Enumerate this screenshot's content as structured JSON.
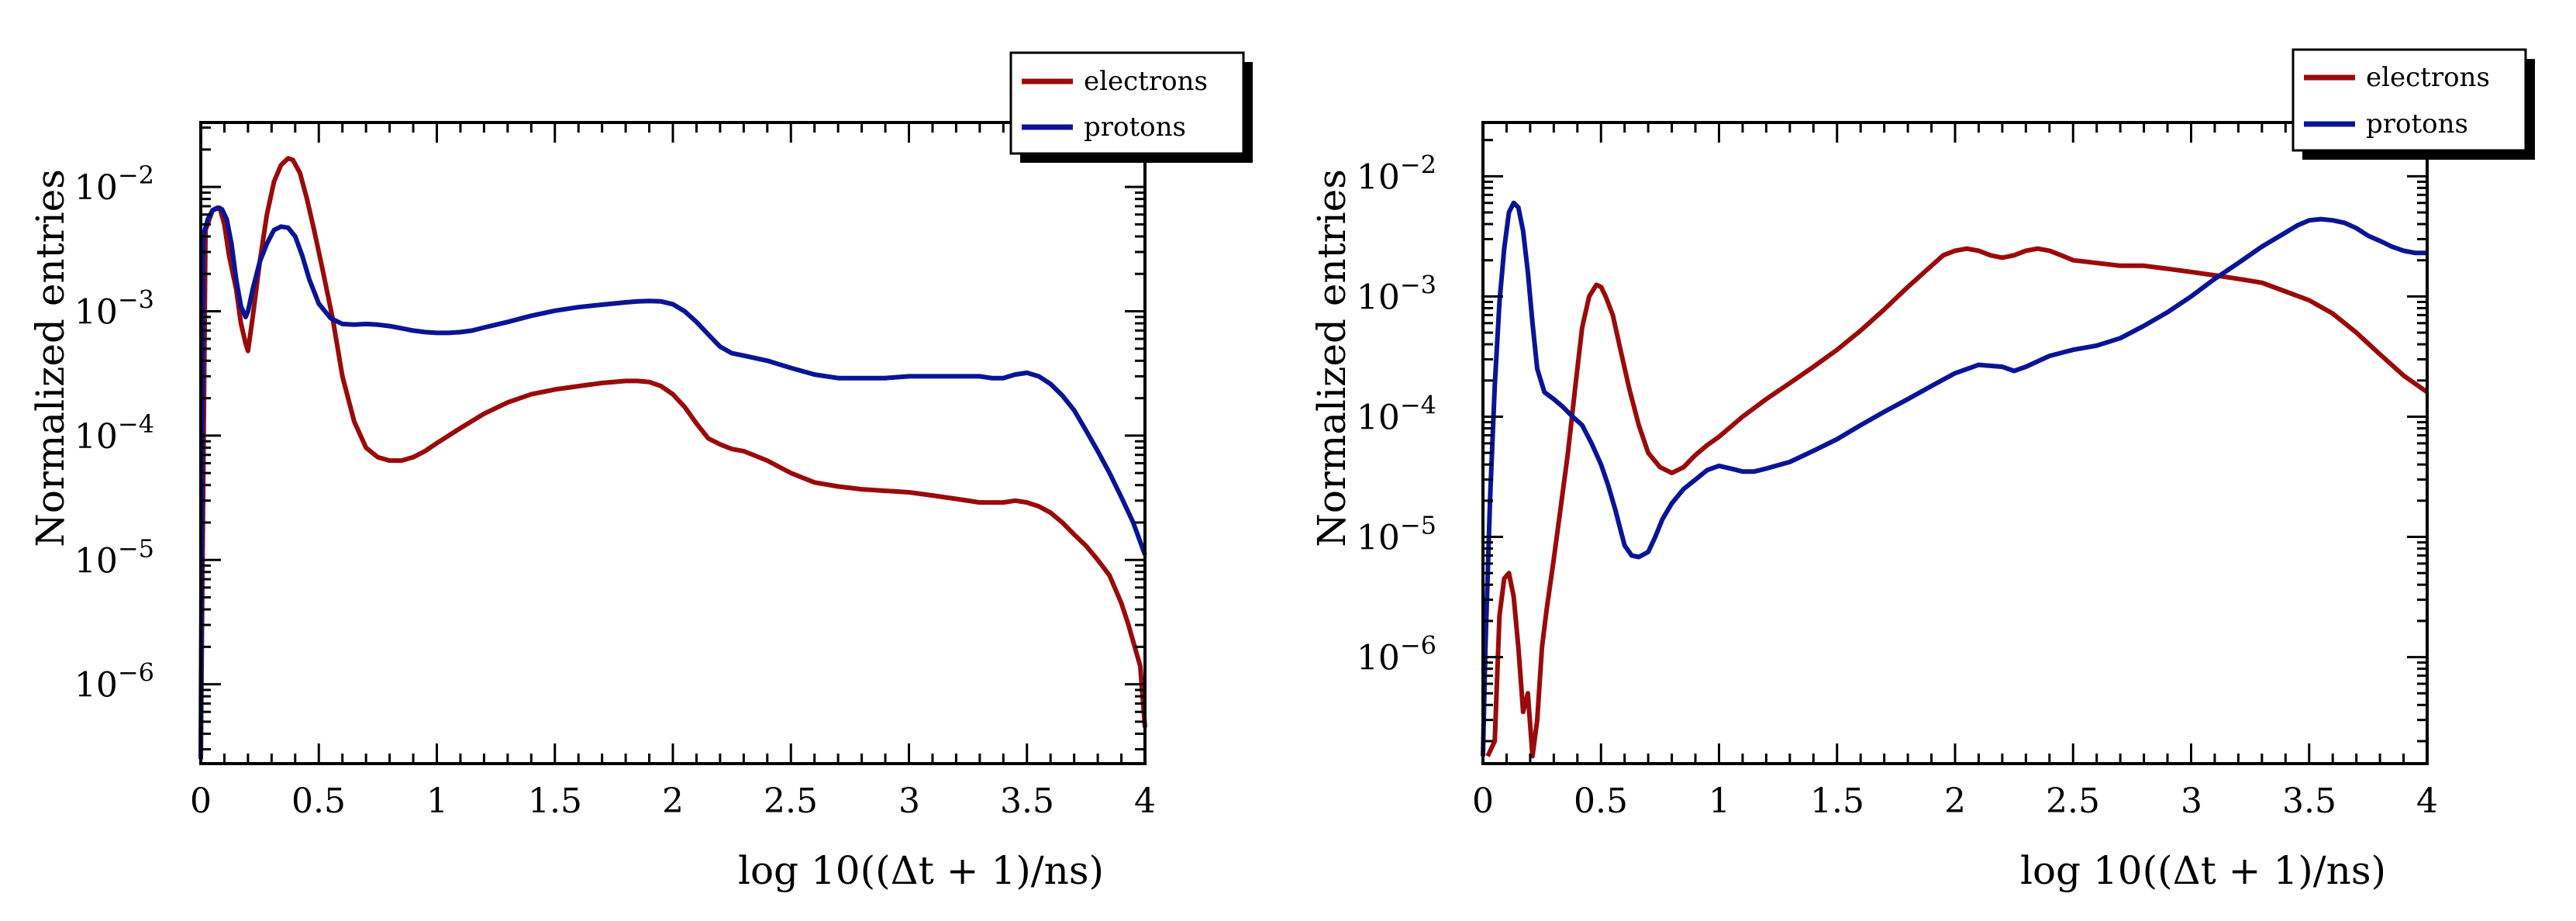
{
  "chart_data": [
    {
      "type": "line",
      "panel": "left",
      "xlabel": "log 10((Δt + 1)/ns)",
      "ylabel": "Normalized entries",
      "yscale": "log",
      "xlim": [
        0,
        4
      ],
      "ylim": [
        2.3e-07,
        0.033
      ],
      "xticks": [
        0,
        0.5,
        1,
        1.5,
        2,
        2.5,
        3,
        3.5,
        4
      ],
      "xtick_labels": [
        "0",
        "0.5",
        "1",
        "1.5",
        "2",
        "2.5",
        "3",
        "3.5",
        "4"
      ],
      "ytick_exponents": [
        -2,
        -3,
        -4,
        -5,
        -6
      ],
      "legend_position": "top-right",
      "series": [
        {
          "name": "electrons",
          "color": "#9b0a0a",
          "x": [
            0,
            0.02,
            0.05,
            0.08,
            0.1,
            0.12,
            0.15,
            0.17,
            0.19,
            0.2,
            0.22,
            0.25,
            0.28,
            0.31,
            0.34,
            0.37,
            0.39,
            0.42,
            0.45,
            0.48,
            0.52,
            0.56,
            0.6,
            0.65,
            0.7,
            0.75,
            0.8,
            0.85,
            0.9,
            0.95,
            1.0,
            1.1,
            1.2,
            1.3,
            1.4,
            1.5,
            1.6,
            1.7,
            1.8,
            1.85,
            1.9,
            1.95,
            2.0,
            2.05,
            2.1,
            2.15,
            2.2,
            2.25,
            2.3,
            2.4,
            2.5,
            2.6,
            2.7,
            2.8,
            2.9,
            3.0,
            3.1,
            3.2,
            3.3,
            3.4,
            3.45,
            3.5,
            3.55,
            3.6,
            3.65,
            3.7,
            3.75,
            3.8,
            3.85,
            3.9,
            3.93,
            3.96,
            3.98,
            4.0
          ],
          "y": [
            2.5e-07,
            0.0045,
            0.0065,
            0.0068,
            0.005,
            0.0028,
            0.0015,
            0.0008,
            0.00055,
            0.00048,
            0.0009,
            0.0025,
            0.006,
            0.011,
            0.015,
            0.017,
            0.0165,
            0.013,
            0.008,
            0.0045,
            0.002,
            0.00085,
            0.0003,
            0.00013,
            8e-05,
            6.7e-05,
            6.3e-05,
            6.3e-05,
            6.7e-05,
            7.5e-05,
            8.7e-05,
            0.000115,
            0.00015,
            0.000185,
            0.000215,
            0.000235,
            0.00025,
            0.000265,
            0.000275,
            0.000275,
            0.00027,
            0.00025,
            0.000215,
            0.00017,
            0.000125,
            9.5e-05,
            8.5e-05,
            7.8e-05,
            7.5e-05,
            6.3e-05,
            5e-05,
            4.2e-05,
            3.9e-05,
            3.7e-05,
            3.6e-05,
            3.5e-05,
            3.3e-05,
            3.1e-05,
            2.9e-05,
            2.9e-05,
            3e-05,
            2.9e-05,
            2.7e-05,
            2.4e-05,
            2e-05,
            1.6e-05,
            1.3e-05,
            1e-05,
            7.5e-06,
            4.5e-06,
            3e-06,
            1.9e-06,
            1.4e-06,
            4.5e-07
          ]
        },
        {
          "name": "protons",
          "color": "#0a1496",
          "x": [
            0,
            0.01,
            0.03,
            0.05,
            0.07,
            0.09,
            0.11,
            0.13,
            0.15,
            0.17,
            0.19,
            0.2,
            0.22,
            0.25,
            0.28,
            0.31,
            0.34,
            0.37,
            0.4,
            0.43,
            0.46,
            0.5,
            0.55,
            0.6,
            0.65,
            0.7,
            0.75,
            0.8,
            0.85,
            0.9,
            0.95,
            1.0,
            1.05,
            1.1,
            1.15,
            1.2,
            1.3,
            1.4,
            1.5,
            1.6,
            1.7,
            1.8,
            1.85,
            1.9,
            1.95,
            2.0,
            2.05,
            2.1,
            2.15,
            2.2,
            2.25,
            2.3,
            2.4,
            2.5,
            2.6,
            2.7,
            2.8,
            2.9,
            3.0,
            3.1,
            3.2,
            3.3,
            3.35,
            3.4,
            3.45,
            3.5,
            3.55,
            3.6,
            3.65,
            3.7,
            3.75,
            3.8,
            3.85,
            3.9,
            3.95,
            4.0
          ],
          "y": [
            2.5e-07,
            0.004,
            0.0055,
            0.0065,
            0.0068,
            0.0066,
            0.0055,
            0.0035,
            0.0018,
            0.0011,
            0.0009,
            0.001,
            0.0015,
            0.0025,
            0.0035,
            0.0045,
            0.0048,
            0.0047,
            0.004,
            0.0028,
            0.0018,
            0.00115,
            0.00088,
            0.00079,
            0.00078,
            0.00079,
            0.00078,
            0.00076,
            0.00073,
            0.0007,
            0.00068,
            0.00067,
            0.00067,
            0.00068,
            0.0007,
            0.00074,
            0.00082,
            0.00092,
            0.00101,
            0.00108,
            0.00113,
            0.00118,
            0.0012,
            0.00121,
            0.0012,
            0.00114,
            0.001,
            0.00082,
            0.00065,
            0.00052,
            0.00046,
            0.00044,
            0.0004,
            0.00035,
            0.00031,
            0.00029,
            0.00029,
            0.00029,
            0.0003,
            0.0003,
            0.0003,
            0.0003,
            0.00029,
            0.00029,
            0.00031,
            0.00032,
            0.0003,
            0.00026,
            0.00021,
            0.00016,
            0.00011,
            7.5e-05,
            5e-05,
            3.2e-05,
            2e-05,
            1.1e-05
          ]
        }
      ]
    },
    {
      "type": "line",
      "panel": "right",
      "xlabel": "log 10((Δt + 1)/ns)",
      "ylabel": "Normalized entries",
      "yscale": "log",
      "xlim": [
        0,
        4
      ],
      "ylim": [
        1.3e-07,
        0.028
      ],
      "xticks": [
        0,
        0.5,
        1,
        1.5,
        2,
        2.5,
        3,
        3.5,
        4
      ],
      "xtick_labels": [
        "0",
        "0.5",
        "1",
        "1.5",
        "2",
        "2.5",
        "3",
        "3.5",
        "4"
      ],
      "ytick_exponents": [
        -2,
        -3,
        -4,
        -5,
        -6
      ],
      "legend_position": "top-right",
      "series": [
        {
          "name": "electrons",
          "color": "#9b0a0a",
          "x": [
            0.02,
            0.05,
            0.07,
            0.09,
            0.11,
            0.13,
            0.15,
            0.17,
            0.19,
            0.21,
            0.23,
            0.25,
            0.27,
            0.3,
            0.33,
            0.36,
            0.39,
            0.42,
            0.45,
            0.48,
            0.5,
            0.52,
            0.55,
            0.58,
            0.62,
            0.66,
            0.7,
            0.75,
            0.8,
            0.85,
            0.9,
            0.95,
            1.0,
            1.1,
            1.2,
            1.3,
            1.4,
            1.5,
            1.6,
            1.7,
            1.8,
            1.9,
            1.95,
            2.0,
            2.05,
            2.1,
            2.15,
            2.2,
            2.25,
            2.3,
            2.35,
            2.4,
            2.45,
            2.5,
            2.6,
            2.7,
            2.8,
            2.9,
            3.0,
            3.1,
            3.2,
            3.3,
            3.4,
            3.5,
            3.6,
            3.7,
            3.8,
            3.9,
            4.0
          ],
          "y": [
            1.5e-07,
            2e-07,
            2.2e-06,
            4.5e-06,
            5e-06,
            3.2e-06,
            1.2e-06,
            3.5e-07,
            5e-07,
            1.5e-07,
            3e-07,
            1.2e-06,
            2.5e-06,
            6.5e-06,
            1.8e-05,
            5e-05,
            0.00017,
            0.00055,
            0.001,
            0.00125,
            0.0012,
            0.001,
            0.0007,
            0.00038,
            0.00017,
            8.5e-05,
            5e-05,
            3.8e-05,
            3.4e-05,
            3.8e-05,
            4.8e-05,
            5.8e-05,
            6.8e-05,
            0.0001,
            0.00014,
            0.00019,
            0.00026,
            0.00036,
            0.00052,
            0.00078,
            0.0012,
            0.0018,
            0.0022,
            0.0024,
            0.0025,
            0.0024,
            0.0022,
            0.0021,
            0.0022,
            0.0024,
            0.0025,
            0.0024,
            0.0022,
            0.002,
            0.0019,
            0.0018,
            0.0018,
            0.0017,
            0.0016,
            0.0015,
            0.0014,
            0.0013,
            0.0011,
            0.00093,
            0.00072,
            0.0005,
            0.00033,
            0.00022,
            0.00016
          ]
        },
        {
          "name": "protons",
          "color": "#0a1496",
          "x": [
            0,
            0.01,
            0.03,
            0.05,
            0.07,
            0.09,
            0.11,
            0.13,
            0.15,
            0.17,
            0.19,
            0.21,
            0.23,
            0.26,
            0.3,
            0.34,
            0.38,
            0.42,
            0.46,
            0.5,
            0.53,
            0.56,
            0.58,
            0.6,
            0.63,
            0.66,
            0.7,
            0.73,
            0.76,
            0.8,
            0.85,
            0.9,
            0.95,
            1.0,
            1.05,
            1.1,
            1.15,
            1.2,
            1.3,
            1.4,
            1.5,
            1.6,
            1.7,
            1.8,
            1.9,
            2.0,
            2.1,
            2.2,
            2.25,
            2.3,
            2.4,
            2.5,
            2.6,
            2.7,
            2.8,
            2.9,
            3.0,
            3.1,
            3.2,
            3.3,
            3.4,
            3.45,
            3.5,
            3.55,
            3.6,
            3.65,
            3.7,
            3.75,
            3.8,
            3.85,
            3.9,
            3.95,
            4.0
          ],
          "y": [
            1.5e-07,
            1.1e-06,
            2e-05,
            0.00018,
            0.0009,
            0.0025,
            0.005,
            0.006,
            0.0055,
            0.0035,
            0.0016,
            0.0006,
            0.00025,
            0.00016,
            0.00014,
            0.00012,
            0.0001,
            8.5e-05,
            6e-05,
            4e-05,
            2.7e-05,
            1.7e-05,
            1.2e-05,
            8.5e-06,
            7e-06,
            6.8e-06,
            7.5e-06,
            1e-05,
            1.4e-05,
            1.9e-05,
            2.5e-05,
            3e-05,
            3.6e-05,
            3.9e-05,
            3.7e-05,
            3.5e-05,
            3.5e-05,
            3.7e-05,
            4.2e-05,
            5.2e-05,
            6.5e-05,
            8.5e-05,
            0.00011,
            0.00014,
            0.00018,
            0.00023,
            0.00027,
            0.00026,
            0.00024,
            0.00026,
            0.00032,
            0.00036,
            0.00039,
            0.00045,
            0.00057,
            0.00074,
            0.001,
            0.0014,
            0.0019,
            0.0026,
            0.0034,
            0.0039,
            0.0043,
            0.0044,
            0.0043,
            0.0041,
            0.0037,
            0.0032,
            0.0029,
            0.0026,
            0.0024,
            0.0023,
            0.0023
          ]
        }
      ]
    }
  ]
}
